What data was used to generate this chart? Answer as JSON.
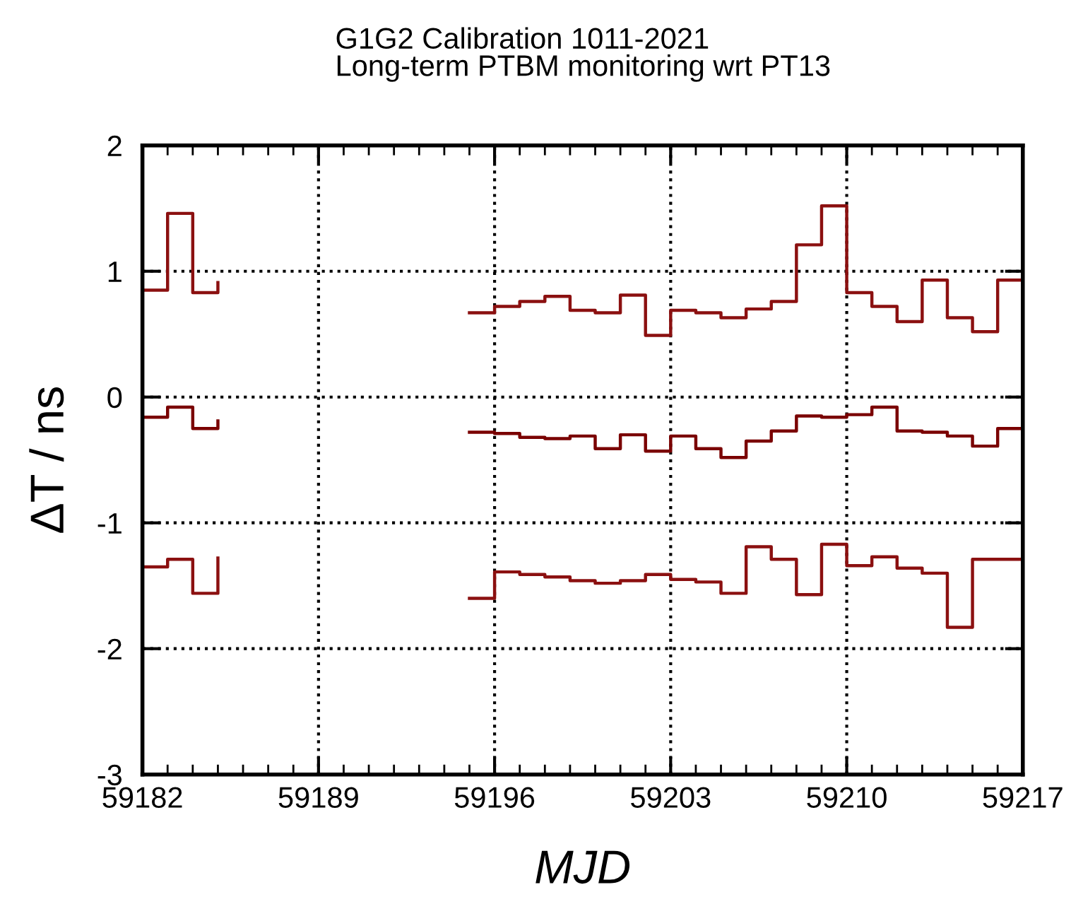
{
  "chart_data": {
    "type": "step",
    "title": "G1G2 Calibration 1011-2021",
    "subtitle": "Long-term PTBM monitoring wrt PT13",
    "xlabel": "MJD",
    "ylabel": "ΔT / ns",
    "xlim": [
      59182,
      59217
    ],
    "xticks": [
      59182,
      59189,
      59196,
      59203,
      59210,
      59217
    ],
    "ylim": [
      -3,
      2
    ],
    "yticks": [
      -3,
      -2,
      -1,
      0,
      1,
      2
    ],
    "grid": true,
    "line_style": "solid",
    "marker": "none",
    "series": [
      {
        "color": "#8b1010",
        "x": [
          59182,
          59183,
          59184,
          59185
        ],
        "values": [
          0.85,
          1.46,
          0.83,
          0.91
        ]
      },
      {
        "color": "#8b1010",
        "x": [
          59195,
          59196,
          59197,
          59198,
          59199,
          59200,
          59201,
          59202,
          59203,
          59204,
          59205,
          59206,
          59207,
          59208,
          59209,
          59210,
          59211,
          59212,
          59213,
          59214,
          59215,
          59216,
          59217
        ],
        "values": [
          0.67,
          0.72,
          0.76,
          0.8,
          0.69,
          0.67,
          0.81,
          0.49,
          0.69,
          0.67,
          0.63,
          0.7,
          0.76,
          1.21,
          1.52,
          0.83,
          0.72,
          0.6,
          0.93,
          0.63,
          0.52,
          0.93,
          0.93
        ]
      },
      {
        "color": "#7a0000",
        "x": [
          59182,
          59183,
          59184,
          59185
        ],
        "values": [
          -0.16,
          -0.08,
          -0.25,
          -0.19
        ]
      },
      {
        "color": "#7a0000",
        "x": [
          59195,
          59196,
          59197,
          59198,
          59199,
          59200,
          59201,
          59202,
          59203,
          59204,
          59205,
          59206,
          59207,
          59208,
          59209,
          59210,
          59211,
          59212,
          59213,
          59214,
          59215,
          59216,
          59217
        ],
        "values": [
          -0.28,
          -0.29,
          -0.32,
          -0.33,
          -0.31,
          -0.41,
          -0.3,
          -0.43,
          -0.31,
          -0.41,
          -0.48,
          -0.35,
          -0.27,
          -0.15,
          -0.16,
          -0.14,
          -0.08,
          -0.27,
          -0.28,
          -0.31,
          -0.39,
          -0.25,
          -0.25
        ]
      },
      {
        "color": "#8b1010",
        "x": [
          59182,
          59183,
          59184,
          59185
        ],
        "values": [
          -1.35,
          -1.29,
          -1.56,
          -1.28
        ]
      },
      {
        "color": "#8b1010",
        "x": [
          59195,
          59196,
          59197,
          59198,
          59199,
          59200,
          59201,
          59202,
          59203,
          59204,
          59205,
          59206,
          59207,
          59208,
          59209,
          59210,
          59211,
          59212,
          59213,
          59214,
          59215,
          59216,
          59217
        ],
        "values": [
          -1.6,
          -1.39,
          -1.41,
          -1.43,
          -1.46,
          -1.48,
          -1.46,
          -1.41,
          -1.45,
          -1.47,
          -1.56,
          -1.19,
          -1.29,
          -1.57,
          -1.17,
          -1.34,
          -1.27,
          -1.36,
          -1.4,
          -1.83,
          -1.29,
          -1.29,
          -1.29
        ]
      }
    ]
  }
}
